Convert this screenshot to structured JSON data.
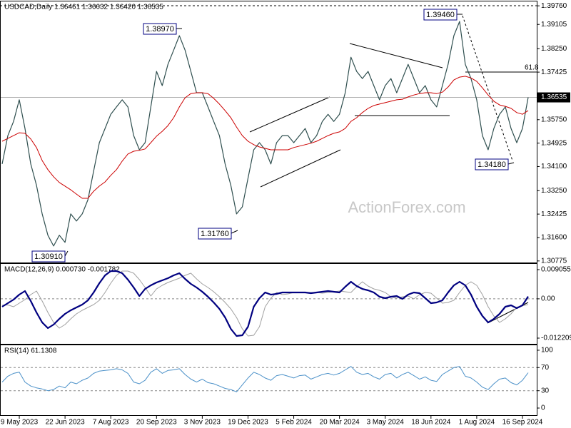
{
  "chart_data": [
    {
      "type": "line",
      "title": "USDCAD,Daily  1.36461 1.36632 1.36420 1.36535",
      "ylim": [
        1.3072,
        1.3989
      ],
      "yticks": [
        {
          "value": 1.3976,
          "label": "1.39760"
        },
        1.39105,
        {
          "value": 1.3825,
          "label": "1.38250"
        },
        1.37425,
        {
          "value": 1.3575,
          "label": "1.35750"
        },
        1.34925,
        {
          "value": 1.341,
          "label": "1.34100"
        },
        {
          "value": 1.3325,
          "label": "1.33250"
        },
        1.32425,
        {
          "value": 1.316,
          "label": "1.31600"
        },
        1.30775
      ],
      "current_price": {
        "value": 1.36535,
        "label": "1.36535"
      },
      "annotations": [
        "1.38970",
        "1.39460",
        "1.31760",
        "1.30910",
        "1.34180",
        "61.8"
      ],
      "watermark": "ActionForex.com",
      "series": [
        {
          "color": "#2f4f4f",
          "line_width": 1.2,
          "values": [
            1.3419,
            1.3519,
            1.3569,
            1.3645,
            1.3544,
            1.3419,
            1.3344,
            1.3243,
            1.3168,
            1.313,
            1.3168,
            1.3143,
            1.3243,
            1.3218,
            1.3243,
            1.3293,
            1.3394,
            1.3494,
            1.3544,
            1.3594,
            1.362,
            1.3645,
            1.362,
            1.3519,
            1.3469,
            1.3494,
            1.362,
            1.3745,
            1.3695,
            1.377,
            1.382,
            1.3871,
            1.382,
            1.3745,
            1.367,
            1.367,
            1.362,
            1.3569,
            1.3519,
            1.3419,
            1.3344,
            1.3243,
            1.3268,
            1.3369,
            1.3469,
            1.3494,
            1.3469,
            1.3419,
            1.3494,
            1.3519,
            1.3519,
            1.3494,
            1.3519,
            1.3544,
            1.3494,
            1.3519,
            1.3569,
            1.3594,
            1.3569,
            1.3594,
            1.367,
            1.3795,
            1.3745,
            1.372,
            1.3745,
            1.3695,
            1.3645,
            1.3695,
            1.372,
            1.367,
            1.372,
            1.377,
            1.372,
            1.367,
            1.3695,
            1.3645,
            1.362,
            1.3695,
            1.377,
            1.3871,
            1.3921,
            1.377,
            1.372,
            1.3645,
            1.3519,
            1.3469,
            1.3544,
            1.3594,
            1.362,
            1.3544,
            1.3494,
            1.3544,
            1.36535
          ]
        },
        {
          "color": "#cc0000",
          "line_width": 1,
          "values": [
            1.3499,
            1.3509,
            1.3519,
            1.3529,
            1.3527,
            1.3507,
            1.3477,
            1.3431,
            1.3399,
            1.3374,
            1.3354,
            1.3341,
            1.3328,
            1.3313,
            1.3298,
            1.3298,
            1.3323,
            1.3341,
            1.3356,
            1.3379,
            1.3399,
            1.3429,
            1.3454,
            1.3464,
            1.3467,
            1.3472,
            1.3494,
            1.3517,
            1.3534,
            1.3554,
            1.3582,
            1.362,
            1.3652,
            1.3667,
            1.367,
            1.367,
            1.3667,
            1.365,
            1.363,
            1.3607,
            1.3582,
            1.3549,
            1.3519,
            1.3499,
            1.3487,
            1.3479,
            1.3474,
            1.3469,
            1.3469,
            1.3469,
            1.3469,
            1.3477,
            1.3482,
            1.3487,
            1.3492,
            1.3499,
            1.3509,
            1.3519,
            1.3527,
            1.3532,
            1.3544,
            1.3569,
            1.3582,
            1.36,
            1.3615,
            1.3625,
            1.363,
            1.3635,
            1.364,
            1.3645,
            1.3647,
            1.3655,
            1.3662,
            1.3667,
            1.367,
            1.367,
            1.3667,
            1.3672,
            1.369,
            1.3715,
            1.3725,
            1.3728,
            1.3722,
            1.371,
            1.3687,
            1.3662,
            1.364,
            1.3627,
            1.3622,
            1.3615,
            1.36,
            1.3594,
            1.3607
          ]
        }
      ]
    },
    {
      "type": "line",
      "title": "MACD(12,26,9) 0.000730 -0.001782",
      "ylim": [
        -0.01398,
        0.01083
      ],
      "yticks": [
        0.009055,
        {
          "value": 0,
          "label": "0.00"
        },
        -0.012209
      ],
      "levels": [
        0
      ],
      "series": [
        {
          "color": "#a0a0a0",
          "line_width": 1,
          "values": [
            -0.002,
            -0.0019,
            -0.00246,
            -0.00135,
            -0.00024,
            0.00131,
            0.00241,
            -0.00069,
            -0.00423,
            -0.00733,
            -0.0091,
            -0.008,
            -0.00622,
            -0.00467,
            -0.00357,
            -0.00268,
            -0.00179,
            -0.00047,
            0.00197,
            0.00485,
            0.00729,
            0.00862,
            0.00862,
            0.00795,
            0.00596,
            0.00352,
            0.00086,
            0.00308,
            0.00419,
            0.00507,
            0.00574,
            0.0064,
            0.00729,
            0.00795,
            0.00618,
            0.00463,
            0.00352,
            0.00219,
            0.00064,
            -0.00113,
            -0.00312,
            -0.00578,
            -0.00933,
            -0.01154,
            -0.01132,
            -0.00866,
            -0.00246,
            0.0002,
            0.00197,
            0.00131,
            0.00153,
            0.00197,
            0.00197,
            0.00197,
            0.00197,
            0.00197,
            0.00175,
            0.00197,
            0.00219,
            0.00241,
            0.00219,
            0.00197,
            0.00374,
            0.00529,
            0.00396,
            0.00308,
            0.00264,
            0.00197,
            0.00064,
            0.0002,
            0.00064,
            0.00086,
            -2e-05,
            0.00131,
            0.00197,
            0.00175,
            0.0002,
            -0.00135,
            -0.00113,
            -0.00047,
            0.00197,
            0.00419,
            0.00529,
            0.00419,
            0.00131,
            -0.00246,
            -0.00534,
            -0.00733,
            -0.00622,
            -0.00467,
            -0.0026,
            -0.0022,
            -0.00178
          ]
        },
        {
          "color": "#000080",
          "line_width": 2.2,
          "values": [
            -0.00246,
            -0.00135,
            -0.00024,
            0.00131,
            0.00241,
            -0.00069,
            -0.00423,
            -0.00733,
            -0.0091,
            -0.008,
            -0.00622,
            -0.00467,
            -0.00357,
            -0.00268,
            -0.00179,
            -0.00047,
            0.00197,
            0.00485,
            0.00729,
            0.00862,
            0.00862,
            0.00795,
            0.00596,
            0.00352,
            0.00086,
            0.00308,
            0.00419,
            0.00507,
            0.00574,
            0.0064,
            0.00729,
            0.00795,
            0.00618,
            0.00463,
            0.00352,
            0.00219,
            0.00064,
            -0.00113,
            -0.00312,
            -0.00578,
            -0.00933,
            -0.01154,
            -0.01132,
            -0.00866,
            -0.00246,
            0.0002,
            0.00197,
            0.00131,
            0.00153,
            0.00197,
            0.00197,
            0.00197,
            0.00197,
            0.00197,
            0.00175,
            0.00197,
            0.00219,
            0.00241,
            0.00219,
            0.00197,
            0.00374,
            0.00529,
            0.00396,
            0.00308,
            0.00264,
            0.00197,
            0.00064,
            0.0002,
            0.00064,
            0.00086,
            -2e-05,
            0.00131,
            0.00197,
            0.00175,
            0.0002,
            -0.00135,
            -0.00113,
            -0.00047,
            0.00197,
            0.00419,
            0.00529,
            0.00419,
            0.00131,
            -0.00246,
            -0.00534,
            -0.00733,
            -0.00622,
            -0.00467,
            -0.00246,
            -0.00202,
            -0.0029,
            -0.00202,
            0.00073
          ]
        }
      ]
    },
    {
      "type": "line",
      "title": "RSI(14) 61.1308",
      "ylim": [
        -12.3,
        108.6
      ],
      "yticks": [
        100,
        70,
        30,
        0
      ],
      "levels": [
        70,
        30
      ],
      "xlim": [
        0,
        92
      ],
      "xticks": [
        {
          "value": 3,
          "label": "9 May 2023"
        },
        {
          "value": 11,
          "label": "22 Jun 2023"
        },
        {
          "value": 19,
          "label": "7 Aug 2023"
        },
        {
          "value": 27,
          "label": "20 Sep 2023"
        },
        {
          "value": 35,
          "label": "3 Nov 2023"
        },
        {
          "value": 43,
          "label": "19 Dec 2023"
        },
        {
          "value": 51,
          "label": "5 Feb 2024"
        },
        {
          "value": 59,
          "label": "20 Mar 2024"
        },
        {
          "value": 67,
          "label": "3 May 2024"
        },
        {
          "value": 75,
          "label": "18 Jun 2024"
        },
        {
          "value": 83,
          "label": "1 Aug 2024"
        },
        {
          "value": 91,
          "label": "16 Sep 2024"
        }
      ],
      "series": [
        {
          "color": "#4a90c8",
          "line_width": 1,
          "values": [
            45,
            55,
            60,
            62,
            45,
            38,
            35,
            33,
            30,
            32,
            38,
            35,
            45,
            42,
            48,
            52,
            60,
            64,
            65,
            66,
            68,
            66,
            60,
            45,
            42,
            48,
            62,
            68,
            60,
            65,
            66,
            68,
            58,
            50,
            45,
            50,
            44,
            42,
            38,
            34,
            32,
            28,
            40,
            52,
            62,
            58,
            52,
            48,
            56,
            58,
            55,
            52,
            56,
            57,
            50,
            54,
            58,
            60,
            57,
            60,
            66,
            72,
            62,
            58,
            60,
            54,
            50,
            58,
            60,
            52,
            58,
            62,
            56,
            50,
            54,
            48,
            46,
            58,
            64,
            70,
            72,
            55,
            52,
            45,
            36,
            32,
            42,
            50,
            52,
            44,
            40,
            48,
            61.1308
          ]
        }
      ]
    }
  ]
}
